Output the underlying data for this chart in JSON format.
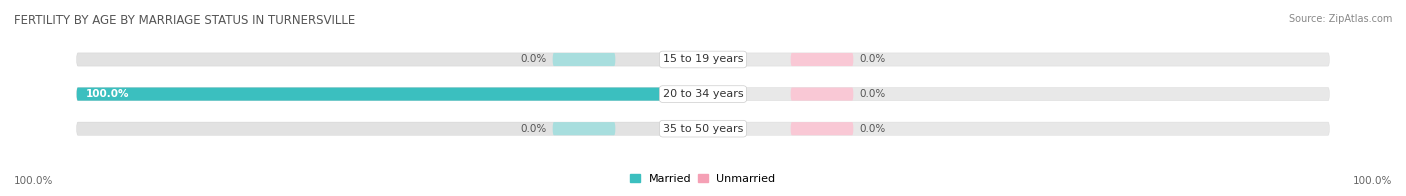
{
  "title": "FERTILITY BY AGE BY MARRIAGE STATUS IN TURNERSVILLE",
  "source": "Source: ZipAtlas.com",
  "categories": [
    "15 to 19 years",
    "20 to 34 years",
    "35 to 50 years"
  ],
  "married_values": [
    0.0,
    100.0,
    0.0
  ],
  "unmarried_values": [
    0.0,
    0.0,
    0.0
  ],
  "married_color": "#3bbfbf",
  "unmarried_color": "#f5a0b5",
  "married_color_light": "#a8dede",
  "unmarried_color_light": "#f9c8d5",
  "bar_bg_left_color": "#e0e0e0",
  "bar_bg_right_color": "#e8e8e8",
  "bar_height": 0.38,
  "fig_bg_color": "#ffffff",
  "title_fontsize": 8.5,
  "label_fontsize": 7.5,
  "category_fontsize": 8.0,
  "source_fontsize": 7,
  "legend_fontsize": 8,
  "left_axis_label": "100.0%",
  "right_axis_label": "100.0%"
}
